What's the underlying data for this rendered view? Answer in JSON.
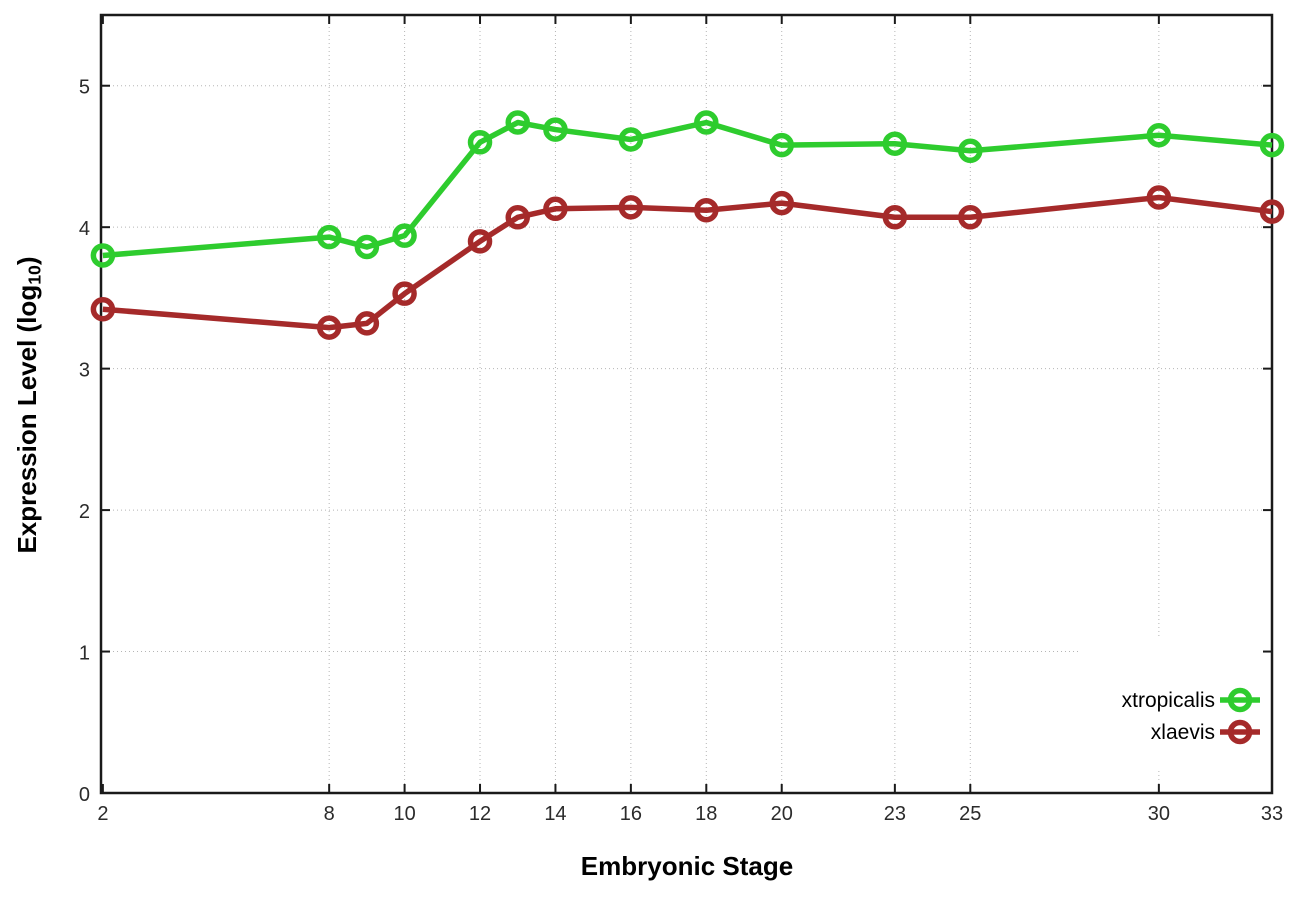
{
  "figure": {
    "xlabel": "Embryonic Stage",
    "ylabel_pre": "Expression Level (log",
    "ylabel_sub": "10",
    "ylabel_post": ")"
  },
  "chart_data": {
    "type": "line",
    "title": "",
    "xlabel": "Embryonic Stage",
    "ylabel": "Expression Level (log10)",
    "x": [
      2,
      8,
      9,
      10,
      12,
      13,
      14,
      16,
      18,
      20,
      23,
      25,
      30,
      33
    ],
    "series": [
      {
        "name": "xtropicalis",
        "color": "#2ecc2e",
        "marker": "open-circle",
        "values": [
          3.8,
          3.93,
          3.86,
          3.94,
          4.6,
          4.74,
          4.69,
          4.62,
          4.74,
          4.58,
          4.59,
          4.54,
          4.65,
          4.58
        ]
      },
      {
        "name": "xlaevis",
        "color": "#a52a2a",
        "marker": "open-circle",
        "values": [
          3.42,
          3.29,
          3.32,
          3.53,
          3.9,
          4.07,
          4.13,
          4.14,
          4.12,
          4.17,
          4.07,
          4.07,
          4.21,
          4.11
        ]
      }
    ],
    "xticks": [
      2,
      8,
      10,
      12,
      14,
      16,
      18,
      20,
      23,
      25,
      30,
      33
    ],
    "yticks": [
      0,
      1,
      2,
      3,
      4,
      5
    ],
    "xlim": [
      1.95,
      33
    ],
    "ylim": [
      0,
      5.5
    ],
    "grid": true,
    "grid_style": "dotted",
    "legend_position": "bottom-right",
    "legend_background": "#ffffff",
    "axis_color": "#1a1a1a",
    "tick_label_color": "#2b2b2b",
    "grid_color": "#b5b5b5"
  }
}
